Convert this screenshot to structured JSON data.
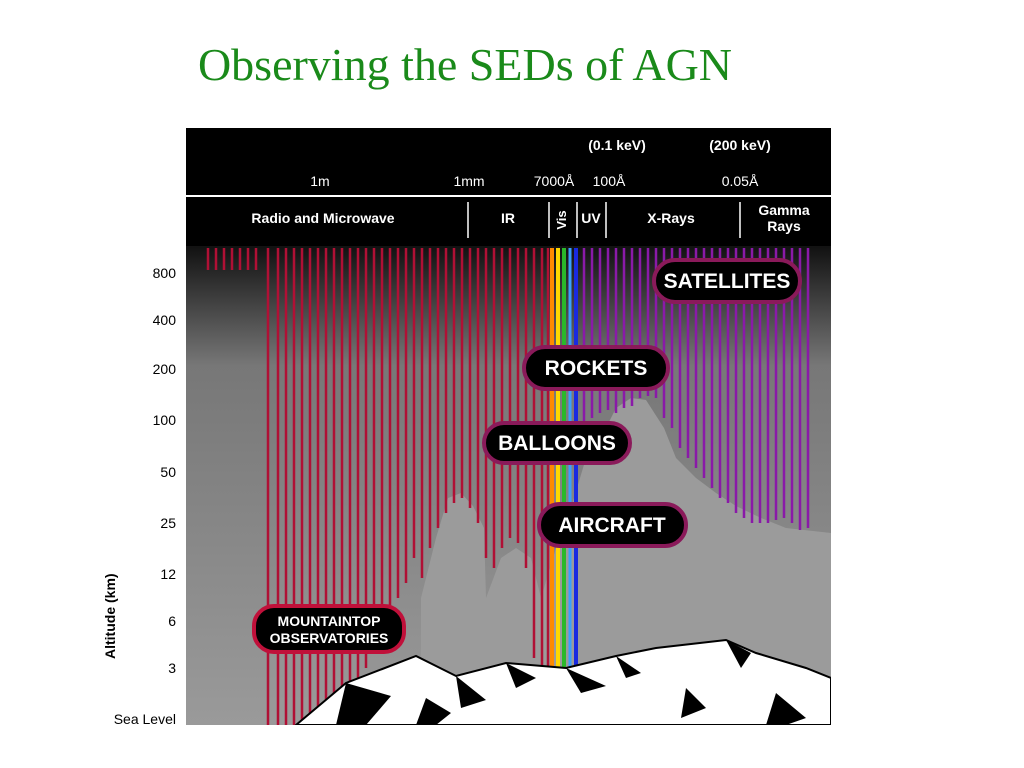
{
  "slide": {
    "title": "Observing the SEDs of AGN"
  },
  "header": {
    "energies": [
      "(0.1 keV)",
      "(200 keV)"
    ],
    "wavelengths": [
      "1m",
      "1mm",
      "7000Å",
      "100Å",
      "0.05Å"
    ],
    "bands": {
      "radio": "Radio and Microwave",
      "ir": "IR",
      "vis": "Vis",
      "uv": "UV",
      "xray": "X-Rays",
      "gamma_1": "Gamma",
      "gamma_2": "Rays"
    }
  },
  "axis": {
    "title": "Altitude (km)",
    "ticks": [
      "800",
      "400",
      "200",
      "100",
      "50",
      "25",
      "12",
      "6",
      "3",
      "Sea Level"
    ]
  },
  "platforms": {
    "satellites": "SATELLITES",
    "rockets": "ROCKETS",
    "balloons": "BALLOONS",
    "aircraft": "AIRCRAFT",
    "mountaintop_1": "MOUNTAINTOP",
    "mountaintop_2": "OBSERVATORIES"
  },
  "colors": {
    "title": "#1a8a1a",
    "radio_ir": "#b01035",
    "uv_xray_gamma": "#8a1aa8",
    "header_bg": "#000000",
    "label_border": "#8a1a5a"
  }
}
